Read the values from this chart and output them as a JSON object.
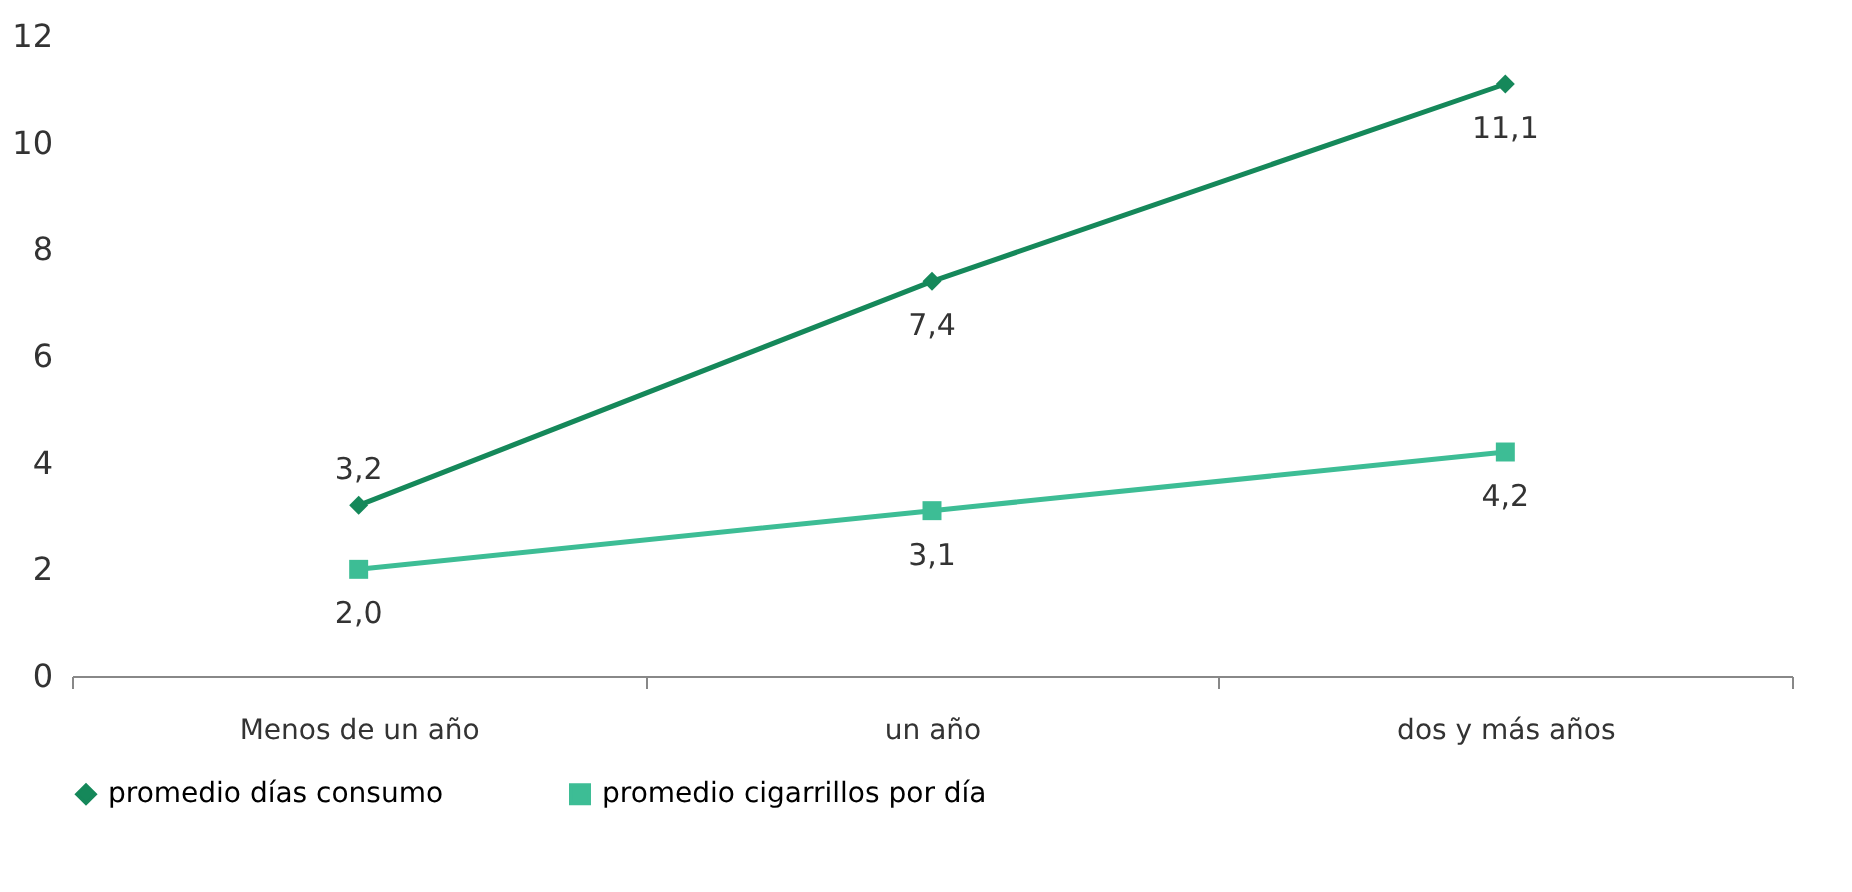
{
  "chart_data": {
    "type": "line",
    "categories": [
      "Menos de un año",
      "un año",
      "dos y más años"
    ],
    "series": [
      {
        "name": "promedio días consumo",
        "color": "#15885a",
        "marker": "diamond",
        "values": [
          3.2,
          7.4,
          11.1
        ],
        "value_labels": [
          "3,2",
          "7,4",
          "11,1"
        ]
      },
      {
        "name": "promedio cigarrillos por día",
        "color": "#3dbd95",
        "marker": "square",
        "values": [
          2.0,
          3.1,
          4.2
        ],
        "value_labels": [
          "2,0",
          "3,1",
          "4,2"
        ]
      }
    ],
    "ylim": [
      0,
      12
    ],
    "yticks": [
      0,
      2,
      4,
      6,
      8,
      10,
      12
    ],
    "grid": false,
    "legend": "bottom",
    "line_style": "solid"
  }
}
